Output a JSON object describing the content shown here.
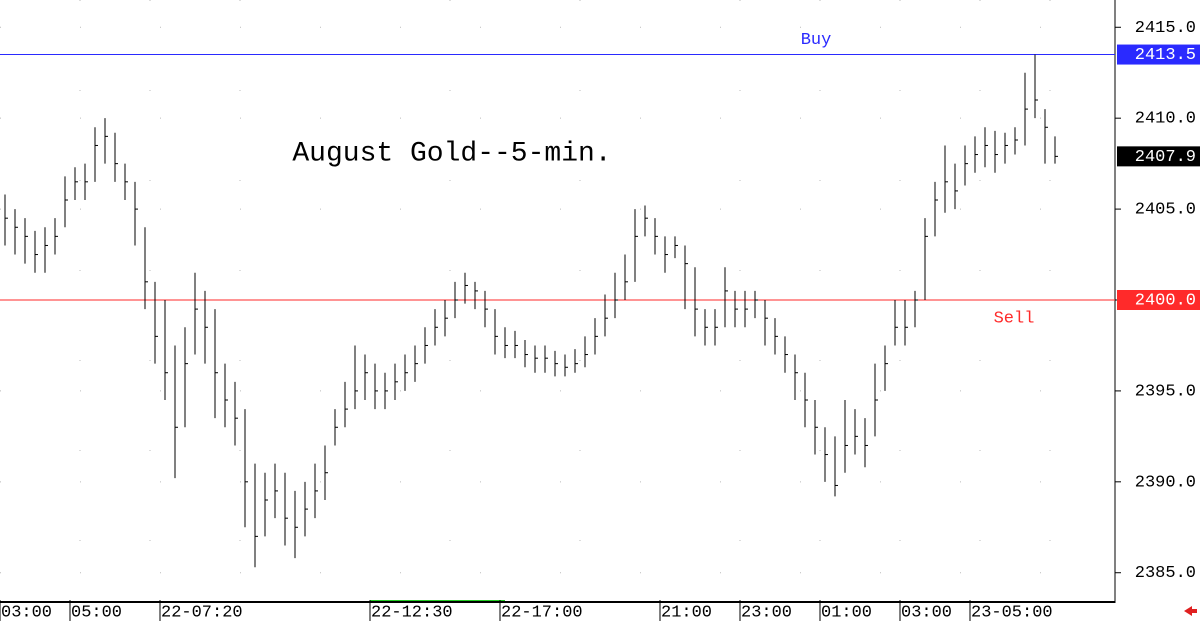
{
  "chart_data": {
    "type": "ohlc",
    "title": "August Gold--5-min.",
    "color": "#000000",
    "categories": [
      "03:00",
      null,
      null,
      null,
      null,
      null,
      null,
      "05:00",
      null,
      null,
      null,
      null,
      null,
      null,
      null,
      null,
      "22-07:20",
      null,
      null,
      null,
      null,
      null,
      null,
      null,
      null,
      null,
      null,
      null,
      null,
      null,
      null,
      null,
      null,
      null,
      null,
      null,
      null,
      "22-12:30",
      null,
      null,
      null,
      null,
      null,
      null,
      null,
      null,
      null,
      null,
      null,
      null,
      "22-17:00",
      null,
      null,
      null,
      null,
      null,
      null,
      null,
      null,
      null,
      null,
      null,
      null,
      null,
      null,
      null,
      "21:00",
      null,
      null,
      null,
      null,
      null,
      null,
      null,
      "23:00",
      null,
      null,
      null,
      null,
      null,
      null,
      null,
      "01:00",
      null,
      null,
      null,
      null,
      null,
      null,
      null,
      "03:00",
      null,
      null,
      null,
      null,
      null,
      null,
      "23-05:00",
      null,
      null,
      null,
      null,
      null,
      null,
      null,
      null
    ],
    "high": [
      2405.8,
      2405,
      2404.5,
      2403.8,
      2404,
      2404.5,
      2406.8,
      2407.3,
      2407.5,
      2409.5,
      2410,
      2409.2,
      2407.5,
      2406.5,
      2404,
      2401,
      2400,
      2397.5,
      2398.5,
      2401.5,
      2400.5,
      2399.5,
      2396.5,
      2395.5,
      2394,
      2391,
      2390.5,
      2391,
      2390.5,
      2389.5,
      2390,
      2391,
      2392,
      2394,
      2395.5,
      2397.5,
      2397,
      2396.5,
      2396,
      2396.5,
      2397,
      2397.5,
      2398.5,
      2399.5,
      2400,
      2401,
      2401.5,
      2401,
      2400.5,
      2399.5,
      2398.5,
      2398.3,
      2397.8,
      2397.5,
      2397.5,
      2397.2,
      2397,
      2397.3,
      2398,
      2399,
      2400.3,
      2401.5,
      2402.5,
      2405,
      2405.2,
      2404.5,
      2403.5,
      2403.5,
      2403,
      2401.8,
      2399.5,
      2399.5,
      2401.8,
      2400.5,
      2400.5,
      2400.5,
      2400,
      2399,
      2398,
      2397,
      2396,
      2394.5,
      2393,
      2392.5,
      2394.5,
      2394,
      2393.5,
      2396.5,
      2397.5,
      2400,
      2400,
      2400.5,
      2404.5,
      2406.5,
      2408.5,
      2407.5,
      2408.5,
      2409,
      2409.5,
      2409.3,
      2409.2,
      2409.5,
      2412.5,
      2413.5,
      2410.5,
      2409
    ],
    "low": [
      2403,
      2402.5,
      2402,
      2401.5,
      2401.5,
      2402.5,
      2404,
      2405.5,
      2405.5,
      2406.5,
      2407.5,
      2406.5,
      2405.5,
      2403,
      2399.5,
      2396.5,
      2394.5,
      2390.2,
      2393,
      2397,
      2396.5,
      2393.5,
      2393,
      2392,
      2387.5,
      2385.3,
      2387,
      2388,
      2386.5,
      2385.8,
      2387,
      2388,
      2389,
      2392,
      2393,
      2394,
      2394.5,
      2394,
      2394,
      2394.5,
      2395,
      2395.5,
      2396.5,
      2397.5,
      2398,
      2399,
      2399.8,
      2399.5,
      2398.5,
      2397,
      2396.8,
      2396.8,
      2396.3,
      2396,
      2396,
      2395.8,
      2395.8,
      2396,
      2396.3,
      2397,
      2398,
      2399,
      2400,
      2401,
      2403.5,
      2402.5,
      2401.5,
      2402.3,
      2399.5,
      2398,
      2397.5,
      2397.5,
      2398.5,
      2398.5,
      2398.5,
      2399,
      2397.5,
      2397,
      2396,
      2394.5,
      2393,
      2391.5,
      2390,
      2389.2,
      2390.5,
      2391.5,
      2390.8,
      2392.5,
      2395,
      2397.5,
      2397.5,
      2398.5,
      2400,
      2403.5,
      2404.8,
      2405,
      2406.3,
      2407,
      2407.3,
      2407,
      2407.5,
      2408,
      2408.5,
      2410,
      2407.5,
      2407.5
    ],
    "close": [
      2404.5,
      2404,
      2403.5,
      2402.5,
      2403,
      2403.5,
      2405.5,
      2406.5,
      2406.5,
      2408.5,
      2409,
      2407.5,
      2406.5,
      2405,
      2401,
      2398,
      2396,
      2393,
      2396.5,
      2399.5,
      2398.5,
      2396,
      2394.5,
      2393.5,
      2390,
      2387,
      2389,
      2389.5,
      2388,
      2387.5,
      2388.5,
      2389.5,
      2390.5,
      2393,
      2394,
      2395,
      2396,
      2395,
      2395,
      2395.5,
      2396,
      2396.5,
      2397.5,
      2398.5,
      2399,
      2400,
      2400.8,
      2400.5,
      2399.5,
      2398,
      2397.5,
      2397.5,
      2397,
      2396.8,
      2396.8,
      2396.5,
      2396.3,
      2396.5,
      2397,
      2398,
      2399,
      2400,
      2401,
      2403.5,
      2404.5,
      2403.5,
      2402.5,
      2403,
      2402,
      2399.5,
      2398.5,
      2398.5,
      2400.5,
      2399.5,
      2399.5,
      2400,
      2399,
      2398,
      2397,
      2396,
      2394.5,
      2393,
      2391.5,
      2389.8,
      2392,
      2392.5,
      2392,
      2394.5,
      2396.5,
      2398.5,
      2398.5,
      2400,
      2403.5,
      2405.5,
      2406.5,
      2406,
      2407.5,
      2408,
      2408.5,
      2408,
      2408.5,
      2408.8,
      2410.5,
      2411,
      2409.5,
      2407.9
    ],
    "ylim": [
      2383.5,
      2416.5
    ],
    "yticks": [
      {
        "value": 2385,
        "label": "2385.0"
      },
      {
        "value": 2390,
        "label": "2390.0"
      },
      {
        "value": 2395,
        "label": "2395.0"
      },
      {
        "value": 2400,
        "label": "2400.0"
      },
      {
        "value": 2405,
        "label": "2405.0"
      },
      {
        "value": 2410,
        "label": "2410.0"
      },
      {
        "value": 2415,
        "label": "2415.0"
      }
    ],
    "grid": true,
    "hlines": [
      {
        "name": "Buy",
        "value": 2413.5,
        "label": "2413.5",
        "color": "#2a2aff"
      },
      {
        "name": "Sell",
        "value": 2400,
        "label": "2400.0",
        "color": "#ff2a2a"
      }
    ],
    "last": {
      "value": 2407.9,
      "label": "2407.9"
    }
  }
}
